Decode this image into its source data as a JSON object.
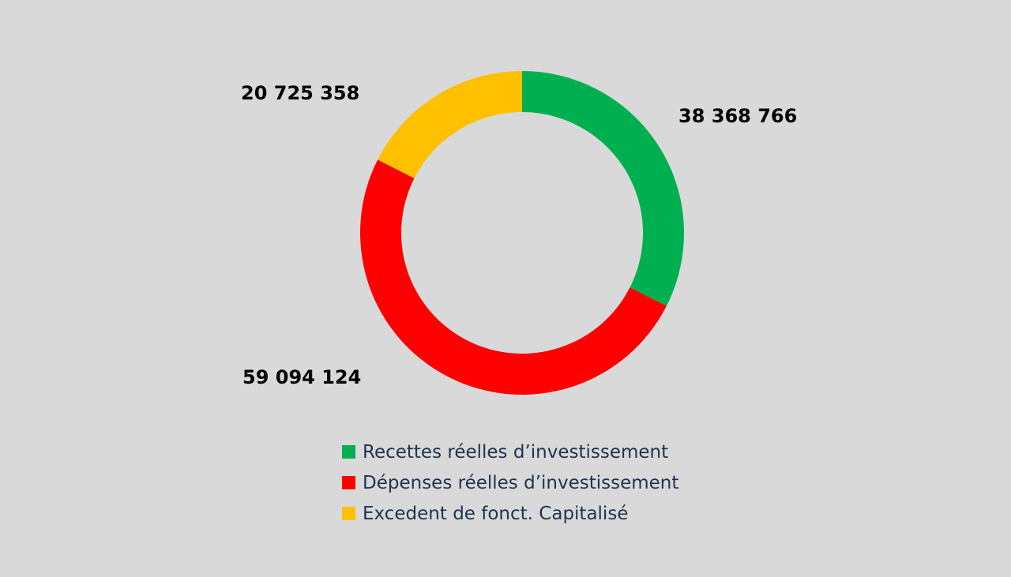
{
  "chart_data": {
    "type": "pie",
    "variant": "donut",
    "categories": [
      "Recettes réelles d’investissement",
      "Dépenses réelles d’investissement",
      "Excedent de fonct. Capitalisé"
    ],
    "values": [
      38368766,
      59094124,
      20725358
    ],
    "value_labels": [
      "38 368 766",
      "59 094 124",
      "20 725 358"
    ],
    "colors": [
      "#00b050",
      "#ff0000",
      "#ffc000"
    ],
    "title": "",
    "legend_position": "bottom"
  }
}
